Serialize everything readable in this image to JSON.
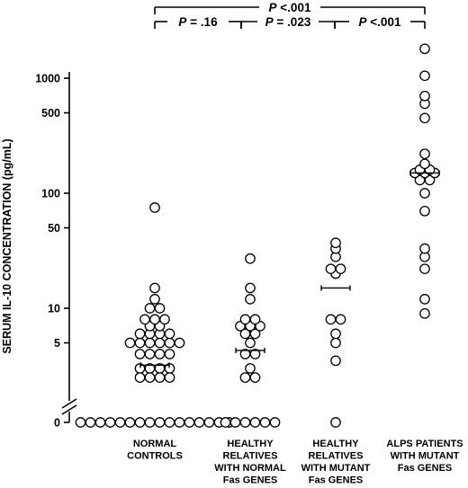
{
  "chart_data": {
    "type": "scatter",
    "ylabel": "SERUM IL-10 CONCENTRATION (pg/mL)",
    "y_scale": "log, with broken axis down to 0",
    "y_ticks": [
      "0",
      "5",
      "10",
      "50",
      "100",
      "500",
      "1000"
    ],
    "categories": [
      [
        "NORMAL",
        "CONTROLS"
      ],
      [
        "HEALTHY",
        "RELATIVES",
        "WITH NORMAL",
        "Fas GENES"
      ],
      [
        "HEALTHY",
        "RELATIVES",
        "WITH MUTANT",
        "Fas GENES"
      ],
      [
        "ALPS PATIENTS",
        "WITH MUTANT",
        "Fas GENES"
      ]
    ],
    "series": [
      {
        "values": [
          0,
          0,
          0,
          0,
          0,
          0,
          0,
          0,
          0,
          0,
          0,
          0,
          0,
          0,
          0,
          0,
          2.5,
          2.5,
          2.5,
          2.5,
          3,
          3,
          3,
          3,
          4,
          4,
          4,
          4,
          5,
          5,
          5,
          5,
          5,
          5,
          6,
          6,
          6,
          6,
          7,
          7,
          8,
          8,
          8,
          10,
          10,
          12,
          15,
          75
        ]
      },
      {
        "values": [
          0,
          0,
          0,
          0,
          0,
          0,
          2.5,
          2.5,
          3,
          4,
          4,
          5,
          6,
          6,
          7,
          7,
          7,
          8,
          8,
          12,
          15,
          27
        ]
      },
      {
        "values": [
          0,
          3.5,
          5,
          6,
          8,
          8,
          20,
          22,
          22,
          28,
          33,
          37
        ]
      },
      {
        "values": [
          9,
          12,
          22,
          28,
          33,
          70,
          100,
          130,
          130,
          150,
          150,
          150,
          160,
          160,
          180,
          220,
          450,
          600,
          700,
          1050,
          1800
        ]
      }
    ],
    "medians": [
      3.2,
      4.3,
      15,
      150
    ],
    "comparisons": [
      {
        "p_label": "P",
        "text": " = .16"
      },
      {
        "p_label": "P",
        "text": " = .023"
      },
      {
        "p_label": "P",
        "text": " <.001"
      },
      {
        "p_label": "P",
        "text": " <.001"
      }
    ]
  }
}
